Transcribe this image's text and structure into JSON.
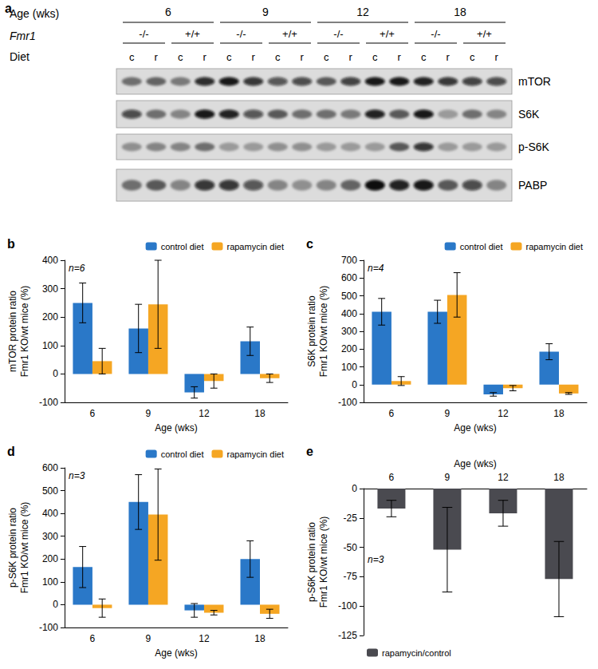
{
  "blot": {
    "panel_label": "a",
    "age_label": "Age (wks)",
    "ages": [
      "6",
      "9",
      "12",
      "18"
    ],
    "genotype_label": "Fmr1",
    "genotypes": [
      "-/-",
      "+/+"
    ],
    "diet_label": "Diet",
    "diets": [
      "c",
      "r"
    ],
    "rows": [
      {
        "name": "mTOR",
        "intensity": [
          0.5,
          0.55,
          0.45,
          0.85,
          0.95,
          0.8,
          0.65,
          0.7,
          0.6,
          0.75,
          0.95,
          0.95,
          0.9,
          0.8,
          0.75,
          0.7
        ]
      },
      {
        "name": "S6K",
        "intensity": [
          0.7,
          0.5,
          0.4,
          0.95,
          0.9,
          0.65,
          0.6,
          0.5,
          0.5,
          0.45,
          0.9,
          0.6,
          0.95,
          0.3,
          0.5,
          0.4
        ]
      },
      {
        "name": "p-S6K",
        "intensity": [
          0.35,
          0.4,
          0.4,
          0.5,
          0.3,
          0.3,
          0.35,
          0.35,
          0.3,
          0.3,
          0.3,
          0.6,
          0.8,
          0.3,
          0.3,
          0.3
        ]
      },
      {
        "name": "PABP",
        "intensity": [
          0.5,
          0.6,
          0.4,
          0.8,
          0.8,
          0.65,
          0.4,
          0.35,
          0.4,
          0.55,
          1.0,
          0.9,
          0.95,
          0.6,
          0.7,
          0.4
        ]
      }
    ]
  },
  "chart_data": [
    {
      "type": "bar",
      "panel_label": "b",
      "annotation": "n=6",
      "x_label": "Age (wks)",
      "y_label": "mTOR protein ratio\nFmr1 KO/wt mice (%)",
      "categories": [
        "6",
        "9",
        "12",
        "18"
      ],
      "series": [
        {
          "name": "control diet",
          "color": "#2a78c8",
          "values": [
            250,
            160,
            -65,
            115
          ],
          "errors": [
            70,
            85,
            20,
            50
          ]
        },
        {
          "name": "rapamycin diet",
          "color": "#f5a623",
          "values": [
            45,
            245,
            -25,
            -15
          ],
          "errors": [
            45,
            155,
            25,
            15
          ]
        }
      ],
      "ylim": [
        -100,
        400
      ],
      "yticks": [
        -100,
        0,
        100,
        200,
        300,
        400
      ],
      "grid": false,
      "legend": "upper right"
    },
    {
      "type": "bar",
      "panel_label": "c",
      "annotation": "n=4",
      "x_label": "Age (wks)",
      "y_label": "S6K protein ratio\nFmr1 KO/wt mice (%)",
      "categories": [
        "6",
        "9",
        "12",
        "18"
      ],
      "series": [
        {
          "name": "control diet",
          "color": "#2a78c8",
          "values": [
            410,
            410,
            -55,
            185
          ],
          "errors": [
            75,
            65,
            10,
            45
          ]
        },
        {
          "name": "rapamycin diet",
          "color": "#f5a623",
          "values": [
            20,
            505,
            -20,
            -50
          ],
          "errors": [
            25,
            125,
            15,
            5
          ]
        }
      ],
      "ylim": [
        -100,
        700
      ],
      "yticks": [
        -100,
        0,
        100,
        200,
        300,
        400,
        500,
        600,
        700
      ],
      "grid": false,
      "legend": "upper right"
    },
    {
      "type": "bar",
      "panel_label": "d",
      "annotation": "n=3",
      "x_label": "Age (wks)",
      "y_label": "p-S6K protein ratio\nFmr1 KO/wt mice (%)",
      "categories": [
        "6",
        "9",
        "12",
        "18"
      ],
      "series": [
        {
          "name": "control diet",
          "color": "#2a78c8",
          "values": [
            165,
            450,
            -25,
            200
          ],
          "errors": [
            90,
            120,
            30,
            80
          ]
        },
        {
          "name": "rapamycin diet",
          "color": "#f5a623",
          "values": [
            -15,
            395,
            -35,
            -40
          ],
          "errors": [
            40,
            200,
            10,
            20
          ]
        }
      ],
      "ylim": [
        -100,
        600
      ],
      "yticks": [
        -100,
        0,
        100,
        200,
        300,
        400,
        500,
        600
      ],
      "grid": false,
      "legend": "upper right"
    },
    {
      "type": "bar",
      "panel_label": "e",
      "annotation": "n=3",
      "x_label": "Age (wks)",
      "y_label": "p-S6K protein ratio\nFmr1 KO/wt mice (%)",
      "categories": [
        "6",
        "9",
        "12",
        "18"
      ],
      "series": [
        {
          "name": "rapamycin/control",
          "color": "#4a4a50",
          "values": [
            -17,
            -52,
            -21,
            -77
          ],
          "errors": [
            7,
            36,
            11,
            32
          ]
        }
      ],
      "ylim": [
        -125,
        0
      ],
      "yticks": [
        -125,
        -100,
        -75,
        -50,
        -25,
        0
      ],
      "grid": false,
      "legend": "lower left"
    }
  ]
}
